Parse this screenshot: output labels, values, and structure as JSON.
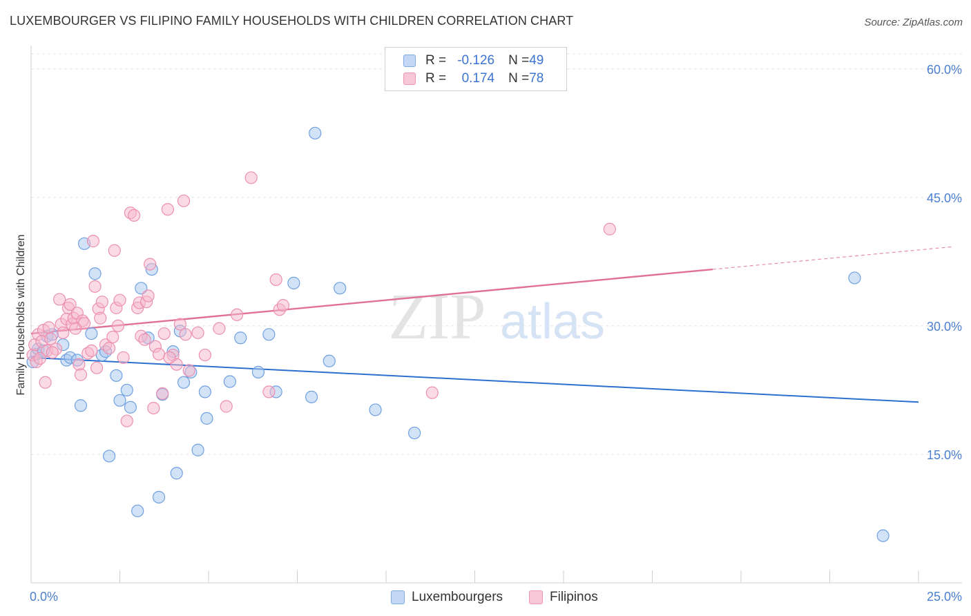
{
  "title": "LUXEMBOURGER VS FILIPINO FAMILY HOUSEHOLDS WITH CHILDREN CORRELATION CHART",
  "source": "Source: ZipAtlas.com",
  "watermark": {
    "zip": "ZIP",
    "atlas": "atlas"
  },
  "colors": {
    "blue_fill": "#a8c8f0",
    "blue_stroke": "#6fa0e0",
    "blue_line": "#2b6fcf",
    "pink_fill": "#f5b8cc",
    "pink_stroke": "#ec8fb0",
    "pink_line": "#e07098",
    "tick_label": "#4a7fd0"
  },
  "legend": {
    "rows": [
      {
        "r_label": "R = ",
        "r_value": "-0.126",
        "n_label": "N = ",
        "n_value": "49"
      },
      {
        "r_label": "R = ",
        "r_value": "0.174",
        "n_label": "N = ",
        "n_value": "78"
      }
    ]
  },
  "bottom_legend": {
    "series1": "Luxembourgers",
    "series2": "Filipinos"
  },
  "chart_data": {
    "type": "scatter",
    "title": "LUXEMBOURGER VS FILIPINO FAMILY HOUSEHOLDS WITH CHILDREN CORRELATION CHART",
    "xlabel": "",
    "ylabel": "Family Households with Children",
    "xlim": [
      0,
      25
    ],
    "ylim": [
      0,
      62
    ],
    "x_tick_labels": [
      "0.0%",
      "25.0%"
    ],
    "y_ticks": [
      15,
      30,
      45,
      60
    ],
    "y_tick_labels": [
      "15.0%",
      "30.0%",
      "45.0%",
      "60.0%"
    ],
    "grid": true,
    "legend_position": "top-center",
    "series": [
      {
        "name": "Luxembourgers",
        "trend": {
          "x": [
            0,
            25
          ],
          "y": [
            26.3,
            21.1
          ]
        },
        "points": [
          [
            0.05,
            25.8
          ],
          [
            0.15,
            26.7
          ],
          [
            0.2,
            27.3
          ],
          [
            0.35,
            27.1
          ],
          [
            0.45,
            28.8
          ],
          [
            0.6,
            29.0
          ],
          [
            0.9,
            27.8
          ],
          [
            1.0,
            26.0
          ],
          [
            1.1,
            26.3
          ],
          [
            1.3,
            26.0
          ],
          [
            1.4,
            20.7
          ],
          [
            1.5,
            39.6
          ],
          [
            1.7,
            29.1
          ],
          [
            1.8,
            36.1
          ],
          [
            2.0,
            26.6
          ],
          [
            2.1,
            27.0
          ],
          [
            2.2,
            14.8
          ],
          [
            2.4,
            24.2
          ],
          [
            2.5,
            21.3
          ],
          [
            2.7,
            22.5
          ],
          [
            2.8,
            20.5
          ],
          [
            3.0,
            8.4
          ],
          [
            3.1,
            34.4
          ],
          [
            3.3,
            28.6
          ],
          [
            3.4,
            36.6
          ],
          [
            3.7,
            22.0
          ],
          [
            3.6,
            10.0
          ],
          [
            4.0,
            27.0
          ],
          [
            4.1,
            12.8
          ],
          [
            4.2,
            29.4
          ],
          [
            4.3,
            23.4
          ],
          [
            4.5,
            24.6
          ],
          [
            4.7,
            15.5
          ],
          [
            4.9,
            22.3
          ],
          [
            4.95,
            19.2
          ],
          [
            5.6,
            23.5
          ],
          [
            5.9,
            28.6
          ],
          [
            6.4,
            24.6
          ],
          [
            6.7,
            29.0
          ],
          [
            6.9,
            22.3
          ],
          [
            7.4,
            35.0
          ],
          [
            7.9,
            21.7
          ],
          [
            8.0,
            52.5
          ],
          [
            8.4,
            25.9
          ],
          [
            8.7,
            34.4
          ],
          [
            9.7,
            20.2
          ],
          [
            10.8,
            17.5
          ],
          [
            23.2,
            35.6
          ],
          [
            24.0,
            5.5
          ]
        ]
      },
      {
        "name": "Filipinos",
        "trend": {
          "x": [
            0,
            19.2
          ],
          "y": [
            29.1,
            36.6
          ]
        },
        "points": [
          [
            0.05,
            26.6
          ],
          [
            0.1,
            27.8
          ],
          [
            0.15,
            25.8
          ],
          [
            0.2,
            29.0
          ],
          [
            0.3,
            28.2
          ],
          [
            0.35,
            29.5
          ],
          [
            0.4,
            23.4
          ],
          [
            0.45,
            27.1
          ],
          [
            0.5,
            29.8
          ],
          [
            0.55,
            28.5
          ],
          [
            0.7,
            27.3
          ],
          [
            0.8,
            33.1
          ],
          [
            0.85,
            30.2
          ],
          [
            0.9,
            29.2
          ],
          [
            1.0,
            30.8
          ],
          [
            1.05,
            32.1
          ],
          [
            1.1,
            32.5
          ],
          [
            1.15,
            30.2
          ],
          [
            1.2,
            30.9
          ],
          [
            1.3,
            31.5
          ],
          [
            1.35,
            25.5
          ],
          [
            1.4,
            24.3
          ],
          [
            1.45,
            30.6
          ],
          [
            1.5,
            30.3
          ],
          [
            1.6,
            26.8
          ],
          [
            1.7,
            27.1
          ],
          [
            1.75,
            39.9
          ],
          [
            1.8,
            34.6
          ],
          [
            1.85,
            25.1
          ],
          [
            1.9,
            32.0
          ],
          [
            1.95,
            30.9
          ],
          [
            2.0,
            32.8
          ],
          [
            2.1,
            27.8
          ],
          [
            2.2,
            27.4
          ],
          [
            2.3,
            28.7
          ],
          [
            2.35,
            38.8
          ],
          [
            2.4,
            32.1
          ],
          [
            2.45,
            30.0
          ],
          [
            2.5,
            33.0
          ],
          [
            2.6,
            26.3
          ],
          [
            2.7,
            18.9
          ],
          [
            2.8,
            43.2
          ],
          [
            2.9,
            42.9
          ],
          [
            3.0,
            32.1
          ],
          [
            3.05,
            32.7
          ],
          [
            3.1,
            28.8
          ],
          [
            3.2,
            28.4
          ],
          [
            3.25,
            32.8
          ],
          [
            3.3,
            33.5
          ],
          [
            3.35,
            37.2
          ],
          [
            3.45,
            20.4
          ],
          [
            3.5,
            27.6
          ],
          [
            3.6,
            26.7
          ],
          [
            3.7,
            22.1
          ],
          [
            3.75,
            29.1
          ],
          [
            3.85,
            43.6
          ],
          [
            4.0,
            26.6
          ],
          [
            4.1,
            25.5
          ],
          [
            4.2,
            30.2
          ],
          [
            4.3,
            44.6
          ],
          [
            4.35,
            29.0
          ],
          [
            4.45,
            24.8
          ],
          [
            4.7,
            29.2
          ],
          [
            4.9,
            26.6
          ],
          [
            5.3,
            29.7
          ],
          [
            5.5,
            20.6
          ],
          [
            5.8,
            31.3
          ],
          [
            6.2,
            47.3
          ],
          [
            6.7,
            22.3
          ],
          [
            6.9,
            35.4
          ],
          [
            7.0,
            31.9
          ],
          [
            7.1,
            32.4
          ],
          [
            11.3,
            22.2
          ],
          [
            16.3,
            41.3
          ],
          [
            0.25,
            26.2
          ],
          [
            0.6,
            26.9
          ],
          [
            1.25,
            29.7
          ],
          [
            3.9,
            26.3
          ]
        ]
      }
    ]
  }
}
